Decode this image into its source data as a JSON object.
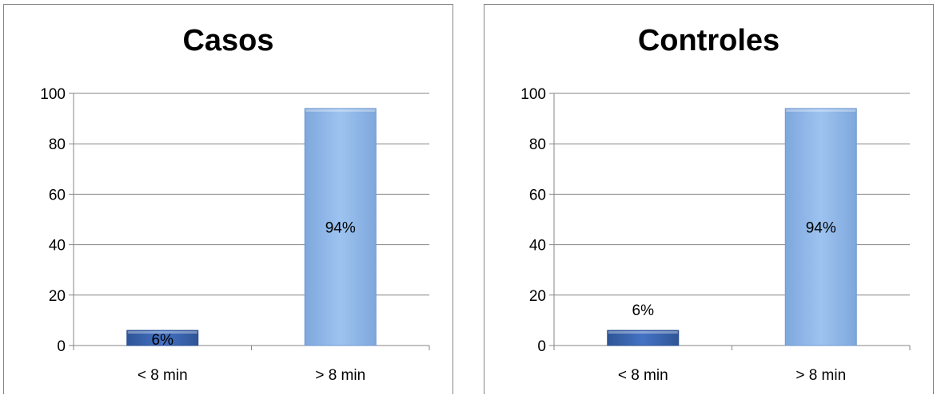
{
  "colors": {
    "bar_low": "#4472c4",
    "bar_high": "#9dc3f0",
    "grid": "#868686"
  },
  "chart_data": [
    {
      "type": "bar",
      "title": "Casos",
      "categories": [
        "< 8 min",
        "> 8 min"
      ],
      "values": [
        6,
        94
      ],
      "data_labels": [
        "6%",
        "94%"
      ],
      "ylim": [
        0,
        100
      ],
      "yticks": [
        "0",
        "20",
        "40",
        "60",
        "80",
        "100"
      ],
      "grid": true,
      "legend": "none"
    },
    {
      "type": "bar",
      "title": "Controles",
      "categories": [
        "< 8 min",
        "> 8 min"
      ],
      "values": [
        6,
        94
      ],
      "data_labels": [
        "6%",
        "94%"
      ],
      "ylim": [
        0,
        100
      ],
      "yticks": [
        "0",
        "20",
        "40",
        "60",
        "80",
        "100"
      ],
      "grid": true,
      "legend": "none"
    }
  ]
}
